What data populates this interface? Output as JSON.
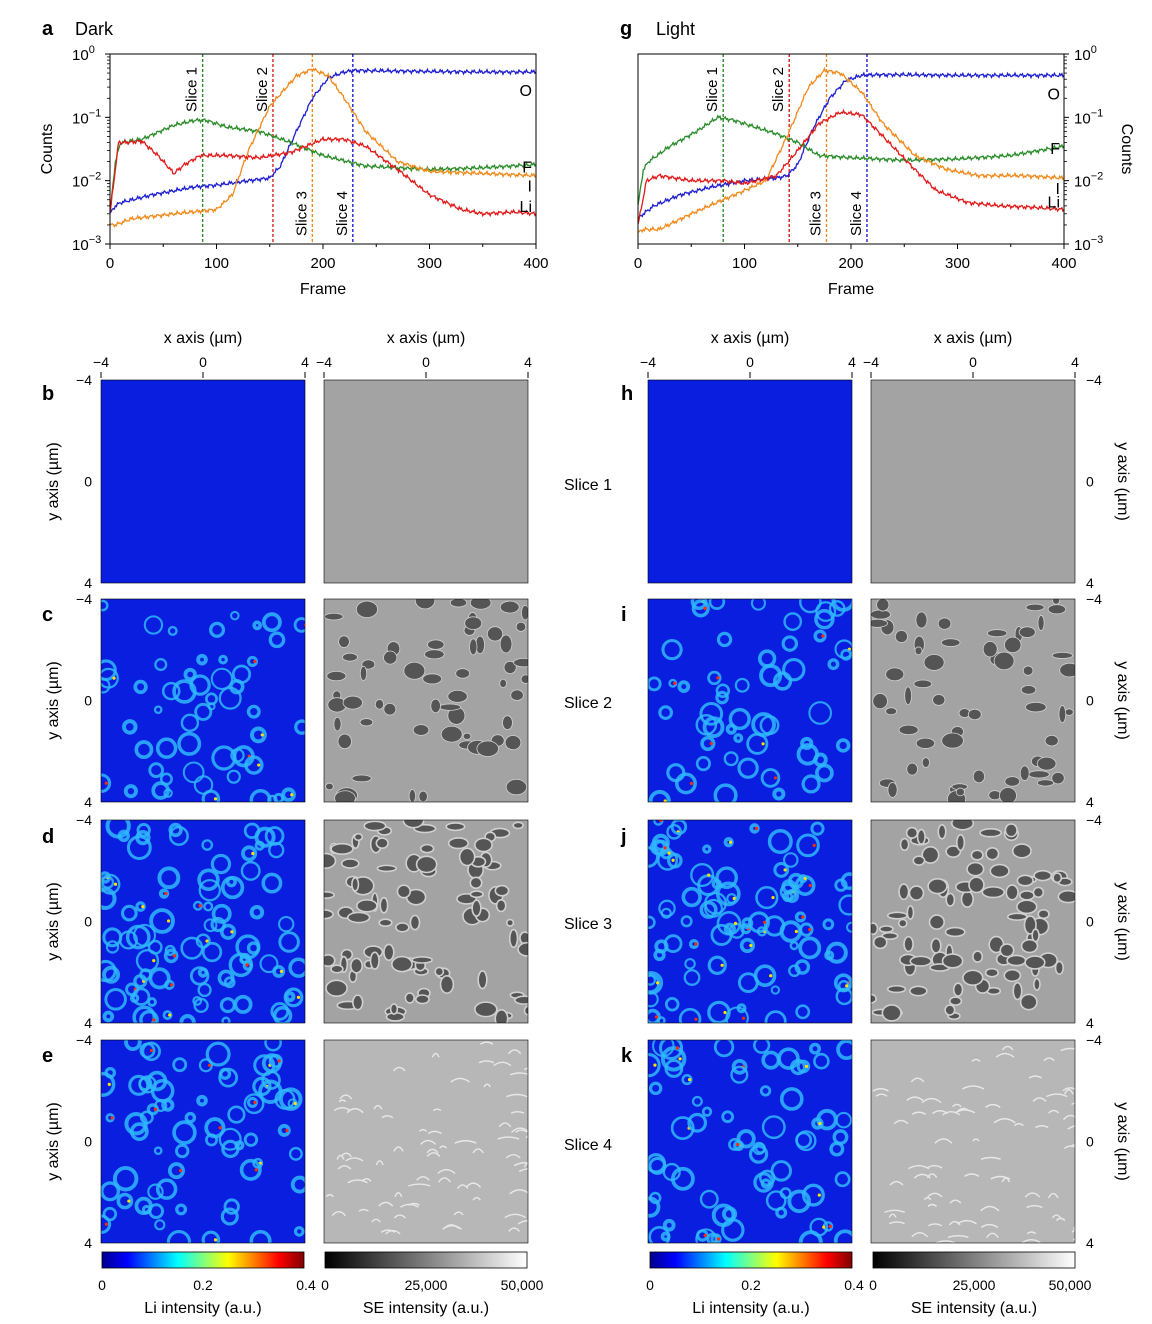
{
  "panels": {
    "a": {
      "letter": "a",
      "title": "Dark"
    },
    "g": {
      "letter": "g",
      "title": "Light"
    },
    "b": "b",
    "c": "c",
    "d": "d",
    "e": "e",
    "h": "h",
    "i": "i",
    "j": "j",
    "k": "k"
  },
  "slice_labels": [
    "Slice 1",
    "Slice 2",
    "Slice 3",
    "Slice 4"
  ],
  "map_axes": {
    "x_label": "x axis (µm)",
    "y_label": "y axis (µm)",
    "x_ticks": [
      "−4",
      "0",
      "4"
    ],
    "y_ticks": [
      "−4",
      "0",
      "4"
    ]
  },
  "colorbars": {
    "li_label": "Li intensity (a.u.)",
    "li_ticks": [
      "0",
      "0.2",
      "0.4"
    ],
    "se_label": "SE intensity (a.u.)",
    "se_ticks": [
      "0",
      "25,000",
      "50,000"
    ]
  },
  "colors": {
    "O": "#1f1fd0",
    "F": "#2a8c2a",
    "I": "#f08a1c",
    "Li": "#e01a1a"
  },
  "chart_data": [
    {
      "type": "line",
      "title": "Dark",
      "xlabel": "Frame",
      "ylabel": "Counts",
      "xlim": [
        0,
        400
      ],
      "ylim": [
        0.001,
        1
      ],
      "yscale": "log",
      "x_ticks": [
        "0",
        "100",
        "200",
        "300",
        "400"
      ],
      "y_ticks": [
        "10",
        "10",
        "10",
        "10"
      ],
      "y_tick_exponents": [
        "0",
        "−1",
        "−2",
        "−3"
      ],
      "slices": [
        {
          "label": "Slice 1",
          "x": 87,
          "color": "#2a8c2a"
        },
        {
          "label": "Slice 2",
          "x": 153,
          "color": "#d22"
        },
        {
          "label": "Slice 3",
          "x": 190,
          "color": "#f08a1c"
        },
        {
          "label": "Slice 4",
          "x": 228,
          "color": "#1f1fd0"
        }
      ],
      "series": [
        {
          "name": "O",
          "color": "#1f1fd0",
          "x": [
            0,
            5,
            10,
            40,
            80,
            100,
            130,
            150,
            160,
            175,
            190,
            205,
            220,
            230,
            260,
            300,
            350,
            400
          ],
          "y": [
            0.003,
            0.004,
            0.0045,
            0.006,
            0.008,
            0.0085,
            0.01,
            0.011,
            0.017,
            0.06,
            0.2,
            0.42,
            0.52,
            0.55,
            0.54,
            0.53,
            0.52,
            0.52
          ]
        },
        {
          "name": "F",
          "color": "#2a8c2a",
          "x": [
            0,
            5,
            10,
            30,
            60,
            80,
            90,
            110,
            140,
            170,
            200,
            240,
            300,
            350,
            400
          ],
          "y": [
            0.003,
            0.02,
            0.04,
            0.045,
            0.075,
            0.09,
            0.09,
            0.07,
            0.06,
            0.04,
            0.025,
            0.017,
            0.015,
            0.016,
            0.018
          ]
        },
        {
          "name": "I",
          "color": "#f08a1c",
          "x": [
            0,
            5,
            20,
            60,
            100,
            115,
            130,
            150,
            175,
            190,
            205,
            220,
            240,
            270,
            300,
            350,
            400
          ],
          "y": [
            0.002,
            0.002,
            0.0025,
            0.003,
            0.0035,
            0.006,
            0.03,
            0.15,
            0.45,
            0.58,
            0.45,
            0.2,
            0.06,
            0.02,
            0.014,
            0.013,
            0.012
          ]
        },
        {
          "name": "Li",
          "color": "#e01a1a",
          "x": [
            0,
            8,
            15,
            30,
            45,
            60,
            70,
            85,
            110,
            140,
            170,
            200,
            220,
            240,
            270,
            300,
            330,
            350,
            380,
            400
          ],
          "y": [
            0.003,
            0.04,
            0.04,
            0.042,
            0.025,
            0.013,
            0.018,
            0.025,
            0.025,
            0.023,
            0.028,
            0.045,
            0.045,
            0.035,
            0.015,
            0.006,
            0.0035,
            0.003,
            0.0032,
            0.003
          ]
        }
      ]
    },
    {
      "type": "line",
      "title": "Light",
      "xlabel": "Frame",
      "ylabel": "Counts",
      "xlim": [
        0,
        400
      ],
      "ylim": [
        0.001,
        1
      ],
      "yscale": "log",
      "x_ticks": [
        "0",
        "100",
        "200",
        "300",
        "400"
      ],
      "y_ticks": [
        "10",
        "10",
        "10",
        "10"
      ],
      "y_tick_exponents": [
        "0",
        "−1",
        "−2",
        "−3"
      ],
      "slices": [
        {
          "label": "Slice 1",
          "x": 80,
          "color": "#2a8c2a"
        },
        {
          "label": "Slice 2",
          "x": 142,
          "color": "#d22"
        },
        {
          "label": "Slice 3",
          "x": 177,
          "color": "#f08a1c"
        },
        {
          "label": "Slice 4",
          "x": 215,
          "color": "#1f1fd0"
        }
      ],
      "series": [
        {
          "name": "O",
          "color": "#1f1fd0",
          "x": [
            0,
            5,
            15,
            40,
            70,
            100,
            130,
            140,
            150,
            165,
            180,
            195,
            210,
            225,
            250,
            300,
            350,
            400
          ],
          "y": [
            0.0025,
            0.003,
            0.004,
            0.006,
            0.008,
            0.01,
            0.011,
            0.012,
            0.018,
            0.07,
            0.2,
            0.38,
            0.46,
            0.47,
            0.47,
            0.46,
            0.46,
            0.46
          ]
        },
        {
          "name": "F",
          "color": "#2a8c2a",
          "x": [
            0,
            5,
            10,
            30,
            55,
            75,
            90,
            110,
            130,
            150,
            170,
            200,
            250,
            300,
            350,
            400
          ],
          "y": [
            0.004,
            0.015,
            0.02,
            0.035,
            0.06,
            0.1,
            0.09,
            0.07,
            0.055,
            0.04,
            0.025,
            0.023,
            0.021,
            0.022,
            0.025,
            0.035
          ]
        },
        {
          "name": "I",
          "color": "#f08a1c",
          "x": [
            0,
            5,
            20,
            50,
            80,
            100,
            120,
            140,
            160,
            175,
            190,
            210,
            230,
            260,
            290,
            320,
            360,
            400
          ],
          "y": [
            0.0015,
            0.0017,
            0.0017,
            0.003,
            0.005,
            0.007,
            0.01,
            0.05,
            0.3,
            0.55,
            0.5,
            0.25,
            0.08,
            0.025,
            0.015,
            0.012,
            0.012,
            0.011
          ]
        },
        {
          "name": "Li",
          "color": "#e01a1a",
          "x": [
            0,
            8,
            20,
            50,
            80,
            100,
            130,
            150,
            170,
            190,
            210,
            230,
            260,
            280,
            310,
            340,
            370,
            400
          ],
          "y": [
            0.002,
            0.01,
            0.012,
            0.01,
            0.01,
            0.009,
            0.012,
            0.03,
            0.08,
            0.12,
            0.11,
            0.05,
            0.015,
            0.007,
            0.0045,
            0.004,
            0.0038,
            0.0035
          ]
        }
      ]
    }
  ]
}
